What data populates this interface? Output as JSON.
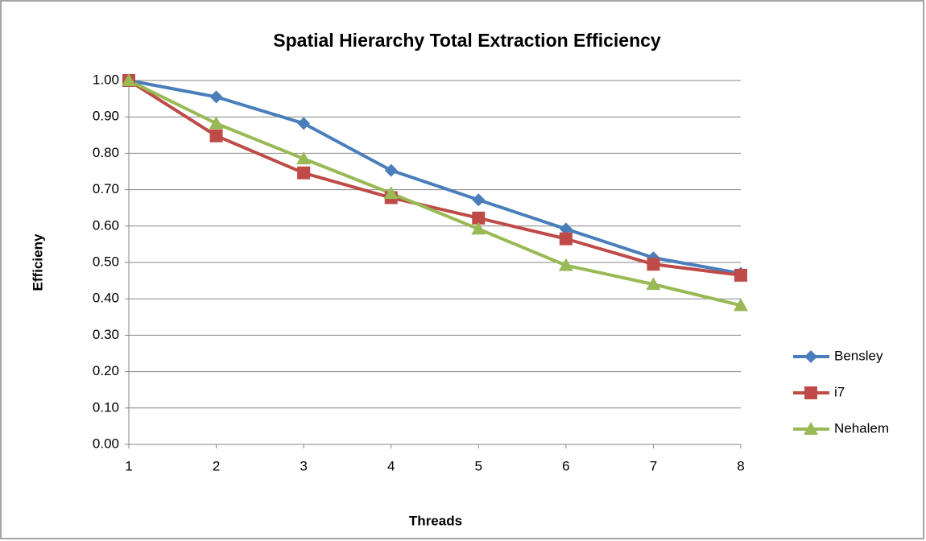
{
  "chart_data": {
    "type": "line",
    "title": "Spatial Hierarchy Total Extraction Efficiency",
    "xlabel": "Threads",
    "ylabel": "Efficieny",
    "x": [
      1,
      2,
      3,
      4,
      5,
      6,
      7,
      8
    ],
    "xlim": [
      1,
      8
    ],
    "xticks": [
      1,
      2,
      3,
      4,
      5,
      6,
      7,
      8
    ],
    "ylim": [
      0,
      1
    ],
    "yticks": [
      {
        "value": 0,
        "label": "0.00"
      },
      {
        "value": 0.1,
        "label": "0.10"
      },
      {
        "value": 0.2,
        "label": "0.20"
      },
      {
        "value": 0.3,
        "label": "0.30"
      },
      {
        "value": 0.4,
        "label": "0.40"
      },
      {
        "value": 0.5,
        "label": "0.50"
      },
      {
        "value": 0.6,
        "label": "0.60"
      },
      {
        "value": 0.7,
        "label": "0.70"
      },
      {
        "value": 0.8,
        "label": "0.80"
      },
      {
        "value": 0.9,
        "label": "0.90"
      },
      {
        "value": 1,
        "label": "1.00"
      }
    ],
    "grid": true,
    "legend": "right",
    "series": [
      {
        "name": "Bensley",
        "color": "#4a7ebb",
        "marker": "diamond",
        "values": [
          1.0,
          0.955,
          0.882,
          0.753,
          0.672,
          0.592,
          0.513,
          0.47
        ]
      },
      {
        "name": "i7",
        "color": "#be4b48",
        "marker": "square",
        "values": [
          1.0,
          0.848,
          0.746,
          0.678,
          0.622,
          0.565,
          0.495,
          0.465
        ]
      },
      {
        "name": "Nehalem",
        "color": "#98b954",
        "marker": "triangle",
        "values": [
          1.0,
          0.882,
          0.785,
          0.69,
          0.592,
          0.492,
          0.44,
          0.382
        ]
      }
    ]
  }
}
